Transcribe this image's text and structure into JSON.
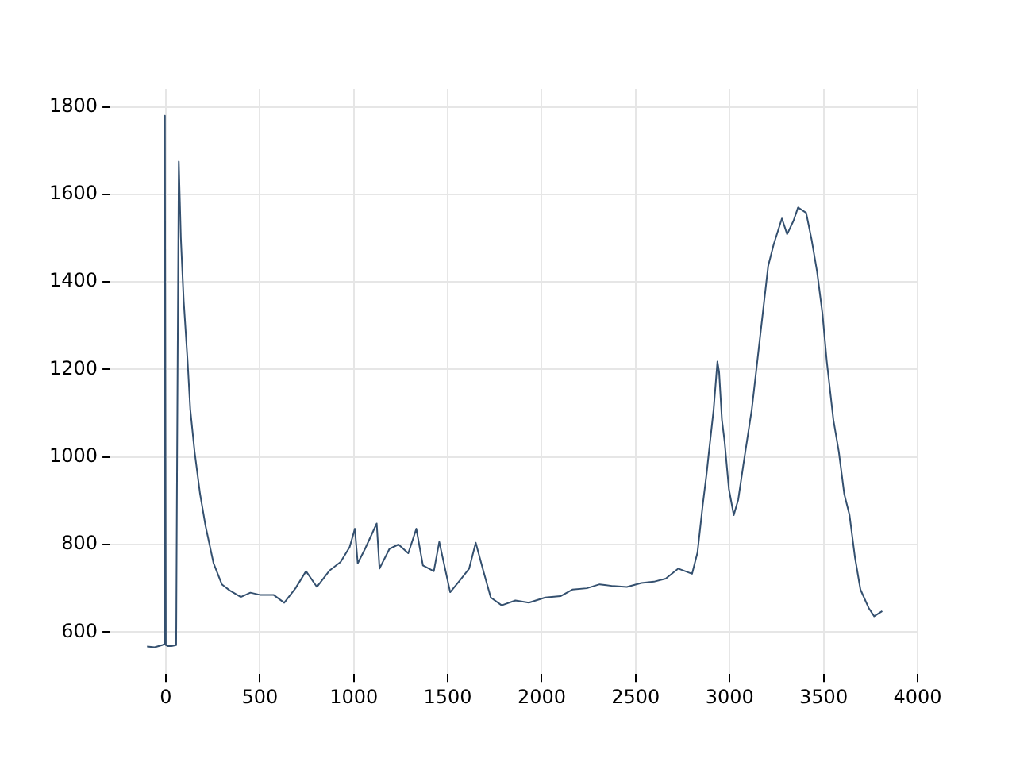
{
  "chart_data": {
    "type": "line",
    "x": [
      -100,
      -60,
      -20,
      -10,
      -5,
      0,
      10,
      30,
      55,
      60,
      69,
      80,
      95,
      116,
      130,
      153,
      182,
      211,
      254,
      298,
      340,
      399,
      450,
      500,
      573,
      630,
      690,
      746,
      804,
      870,
      930,
      978,
      1006,
      1021,
      1060,
      1122,
      1137,
      1190,
      1238,
      1290,
      1333,
      1368,
      1426,
      1455,
      1513,
      1570,
      1614,
      1649,
      1686,
      1729,
      1787,
      1860,
      1932,
      2019,
      2100,
      2163,
      2240,
      2308,
      2380,
      2453,
      2530,
      2597,
      2660,
      2727,
      2800,
      2829,
      2857,
      2878,
      2887,
      2915,
      2935,
      2944,
      2959,
      2973,
      2996,
      3022,
      3046,
      3075,
      3118,
      3147,
      3176,
      3205,
      3234,
      3278,
      3306,
      3340,
      3364,
      3407,
      3436,
      3465,
      3494,
      3517,
      3552,
      3581,
      3610,
      3638,
      3667,
      3696,
      3740,
      3769,
      3812
    ],
    "series": [
      {
        "color": "#34506f",
        "values": [
          567,
          565,
          570,
          572,
          1780,
          570,
          568,
          568,
          570,
          1000,
          1675,
          1500,
          1357,
          1218,
          1109,
          1012,
          916,
          843,
          757,
          709,
          695,
          680,
          690,
          685,
          685,
          667,
          700,
          739,
          703,
          740,
          760,
          794,
          836,
          757,
          790,
          848,
          745,
          790,
          800,
          780,
          836,
          752,
          739,
          806,
          691,
          721,
          745,
          804,
          745,
          679,
          661,
          672,
          667,
          679,
          682,
          697,
          700,
          709,
          705,
          703,
          712,
          715,
          722,
          745,
          733,
          782,
          891,
          964,
          1000,
          1109,
          1218,
          1194,
          1085,
          1036,
          927,
          867,
          903,
          988,
          1109,
          1218,
          1327,
          1436,
          1485,
          1545,
          1509,
          1540,
          1570,
          1558,
          1497,
          1424,
          1327,
          1218,
          1085,
          1012,
          915,
          867,
          770,
          697,
          655,
          636,
          648
        ]
      }
    ],
    "xlim": [
      -295,
      4000
    ],
    "ylim": [
      504,
      1841
    ],
    "xticks": [
      0,
      500,
      1000,
      1500,
      2000,
      2500,
      3000,
      3500,
      4000
    ],
    "yticks": [
      600,
      800,
      1000,
      1200,
      1400,
      1600,
      1800
    ],
    "grid": true
  }
}
